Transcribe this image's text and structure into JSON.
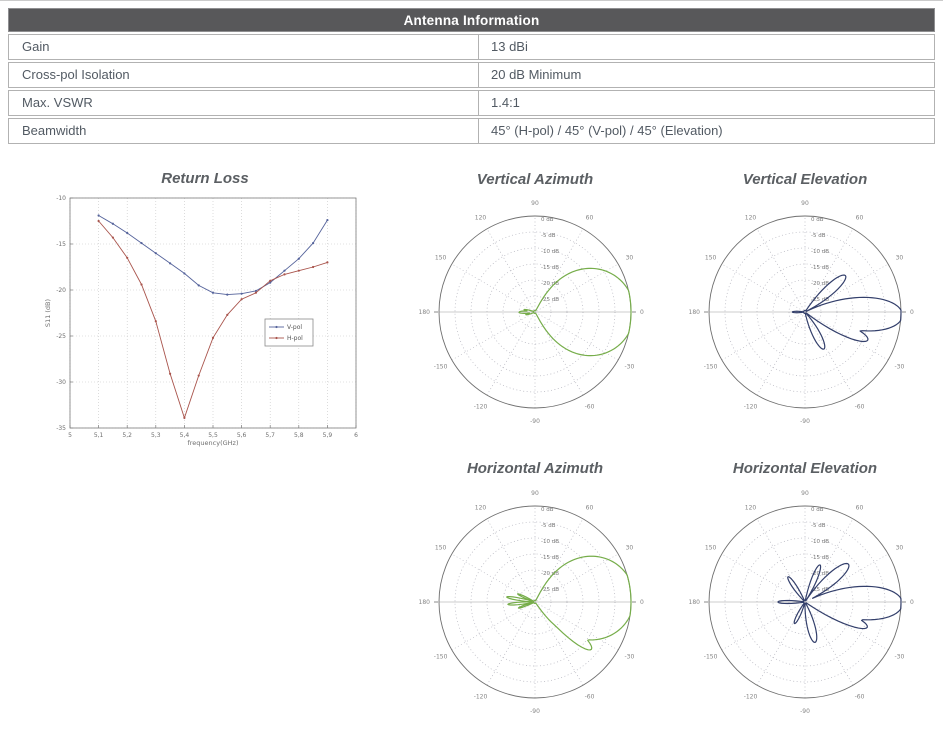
{
  "table": {
    "title": "Antenna Information",
    "header_bg": "#58585a",
    "header_text_color": "#ffffff",
    "border_color": "#b2b2b2",
    "text_color": "#525a63",
    "rows": [
      {
        "label": "Gain",
        "value": "13 dBi"
      },
      {
        "label": "Cross-pol Isolation",
        "value": "20 dB Minimum"
      },
      {
        "label": "Max. VSWR",
        "value": "1.4:1"
      },
      {
        "label": "Beamwidth",
        "value": "45° (H-pol) / 45° (V-pol) / 45° (Elevation)"
      }
    ]
  },
  "chart_data": [
    {
      "id": "return-loss",
      "type": "line",
      "title": "Return Loss",
      "xlabel": "frequency(GHz)",
      "ylabel": "S11 (dB)",
      "xlim": [
        5,
        6
      ],
      "ylim": [
        -35,
        -10
      ],
      "grid": true,
      "legend_position": "middle-right",
      "xticks": [
        5,
        5.1,
        5.2,
        5.3,
        5.4,
        5.5,
        5.6,
        5.7,
        5.8,
        5.9,
        6
      ],
      "xtick_labels": [
        "5",
        "5,1",
        "5,2",
        "5,3",
        "5,4",
        "5,5",
        "5,6",
        "5,7",
        "5,8",
        "5,9",
        "6"
      ],
      "yticks": [
        -10,
        -15,
        -20,
        -25,
        -30,
        -35
      ],
      "ytick_labels": [
        "-10",
        "-15",
        "-20",
        "-25",
        "-30",
        "-35"
      ],
      "x": [
        5.1,
        5.15,
        5.2,
        5.25,
        5.3,
        5.35,
        5.4,
        5.45,
        5.5,
        5.55,
        5.6,
        5.65,
        5.7,
        5.75,
        5.8,
        5.85,
        5.9
      ],
      "series": [
        {
          "name": "V-pol",
          "color": "#55639b",
          "values": [
            -11.9,
            -12.8,
            -13.8,
            -14.9,
            -16.0,
            -17.1,
            -18.2,
            -19.5,
            -20.3,
            -20.5,
            -20.4,
            -20.1,
            -19.2,
            -17.9,
            -16.6,
            -14.9,
            -12.4
          ]
        },
        {
          "name": "H-pol",
          "color": "#a9544c",
          "values": [
            -12.5,
            -14.3,
            -16.5,
            -19.4,
            -23.4,
            -29.1,
            -33.9,
            -29.3,
            -25.2,
            -22.7,
            -21.0,
            -20.3,
            -19.0,
            -18.3,
            -17.9,
            -17.5,
            -17.0
          ]
        }
      ]
    },
    {
      "id": "vertical-azimuth",
      "type": "polar",
      "title": "Vertical Azimuth",
      "color": "#76ad4a",
      "r_axis": {
        "min_db": -30,
        "max_db": 0,
        "step_db": 5,
        "labels": [
          "0 dB",
          "-5 dB",
          "-10 dB",
          "-15 dB",
          "-20 dB",
          "-25 dB"
        ]
      },
      "angle_labels": [
        {
          "a": 90,
          "t": "90"
        },
        {
          "a": 60,
          "t": "60"
        },
        {
          "a": 30,
          "t": "30"
        },
        {
          "a": 0,
          "t": "0"
        },
        {
          "a": -30,
          "t": "-30"
        },
        {
          "a": -60,
          "t": "-60"
        },
        {
          "a": -90,
          "t": "-90"
        },
        {
          "a": -120,
          "t": "-120"
        },
        {
          "a": -150,
          "t": "-150"
        },
        {
          "a": 180,
          "t": "180"
        },
        {
          "a": 150,
          "t": "150"
        },
        {
          "a": 120,
          "t": "120"
        }
      ],
      "lobes": [
        {
          "dir": 0,
          "hw": 62,
          "db": 1,
          "p": 0.6
        },
        {
          "dir": 168,
          "hw": 9,
          "db": -26.5,
          "p": 1.2
        },
        {
          "dir": 181,
          "hw": 13,
          "db": -25,
          "p": 1.2
        },
        {
          "dir": 196,
          "hw": 9,
          "db": -27,
          "p": 1.2
        }
      ]
    },
    {
      "id": "vertical-elevation",
      "type": "polar",
      "title": "Vertical Elevation",
      "color": "#333f6b",
      "r_axis": {
        "min_db": -30,
        "max_db": 0,
        "step_db": 5,
        "labels": [
          "0 dB",
          "-5 dB",
          "-10 dB",
          "-15 dB",
          "-20 dB",
          "-25 dB"
        ]
      },
      "angle_labels": [
        {
          "a": 90,
          "t": "90"
        },
        {
          "a": 60,
          "t": "60"
        },
        {
          "a": 30,
          "t": "30"
        },
        {
          "a": 0,
          "t": "0"
        },
        {
          "a": -30,
          "t": "-30"
        },
        {
          "a": -60,
          "t": "-60"
        },
        {
          "a": -90,
          "t": "-90"
        },
        {
          "a": -120,
          "t": "-120"
        },
        {
          "a": -150,
          "t": "-150"
        },
        {
          "a": 180,
          "t": "180"
        },
        {
          "a": 150,
          "t": "150"
        },
        {
          "a": 120,
          "t": "120"
        }
      ],
      "lobes": [
        {
          "dir": -2,
          "hw": 29,
          "db": 0.5,
          "p": 1.1
        },
        {
          "dir": -24,
          "hw": 14,
          "db": -8.5,
          "p": 1
        },
        {
          "dir": 42,
          "hw": 15,
          "db": -13,
          "p": 1
        },
        {
          "dir": -63,
          "hw": 15,
          "db": -17,
          "p": 1
        },
        {
          "dir": 180,
          "hw": 9,
          "db": -26,
          "p": 1
        }
      ]
    },
    {
      "id": "horizontal-azimuth",
      "type": "polar",
      "title": "Horizontal Azimuth",
      "color": "#76ad4a",
      "r_axis": {
        "min_db": -30,
        "max_db": 0,
        "step_db": 5,
        "labels": [
          "0 dB",
          "-5 dB",
          "-10 dB",
          "-15 dB",
          "-20 dB",
          "-25 dB"
        ]
      },
      "angle_labels": [
        {
          "a": 90,
          "t": "90"
        },
        {
          "a": 60,
          "t": "60"
        },
        {
          "a": 30,
          "t": "30"
        },
        {
          "a": 0,
          "t": "0"
        },
        {
          "a": -30,
          "t": "-30"
        },
        {
          "a": -60,
          "t": "-60"
        },
        {
          "a": -90,
          "t": "-90"
        },
        {
          "a": -120,
          "t": "-120"
        },
        {
          "a": -150,
          "t": "-150"
        },
        {
          "a": 180,
          "t": "180"
        },
        {
          "a": 150,
          "t": "150"
        },
        {
          "a": 120,
          "t": "120"
        }
      ],
      "lobes": [
        {
          "dir": 4,
          "hw": 59,
          "db": 1,
          "p": 0.6
        },
        {
          "dir": -40,
          "hw": 13,
          "db": -7,
          "p": 1
        },
        {
          "dir": 170,
          "hw": 8,
          "db": -21,
          "p": 1.3
        },
        {
          "dir": 185,
          "hw": 8,
          "db": -21.5,
          "p": 1.3
        },
        {
          "dir": 155,
          "hw": 7,
          "db": -24,
          "p": 1.3
        },
        {
          "dir": 200,
          "hw": 7,
          "db": -24.5,
          "p": 1.3
        }
      ]
    },
    {
      "id": "horizontal-elevation",
      "type": "polar",
      "title": "Horizontal Elevation",
      "color": "#333f6b",
      "r_axis": {
        "min_db": -30,
        "max_db": 0,
        "step_db": 5,
        "labels": [
          "0 dB",
          "-5 dB",
          "-10 dB",
          "-15 dB",
          "-20 dB",
          "-25 dB"
        ]
      },
      "angle_labels": [
        {
          "a": 90,
          "t": "90"
        },
        {
          "a": 60,
          "t": "60"
        },
        {
          "a": 30,
          "t": "30"
        },
        {
          "a": 0,
          "t": "0"
        },
        {
          "a": -30,
          "t": "-30"
        },
        {
          "a": -60,
          "t": "-60"
        },
        {
          "a": -90,
          "t": "-90"
        },
        {
          "a": -120,
          "t": "-120"
        },
        {
          "a": -150,
          "t": "-150"
        },
        {
          "a": 180,
          "t": "180"
        },
        {
          "a": 150,
          "t": "150"
        },
        {
          "a": 120,
          "t": "120"
        }
      ],
      "lobes": [
        {
          "dir": -1,
          "hw": 29,
          "db": 0.5,
          "p": 1.1
        },
        {
          "dir": -22,
          "hw": 13,
          "db": -9,
          "p": 1
        },
        {
          "dir": 41,
          "hw": 16,
          "db": -12,
          "p": 1
        },
        {
          "dir": 68,
          "hw": 11,
          "db": -17.5,
          "p": 1
        },
        {
          "dir": 124,
          "hw": 11,
          "db": -20.5,
          "p": 1
        },
        {
          "dir": 180,
          "hw": 9,
          "db": -21.5,
          "p": 1
        },
        {
          "dir": -116,
          "hw": 11,
          "db": -22.5,
          "p": 1
        },
        {
          "dir": -76,
          "hw": 15,
          "db": -17,
          "p": 1
        }
      ]
    }
  ]
}
